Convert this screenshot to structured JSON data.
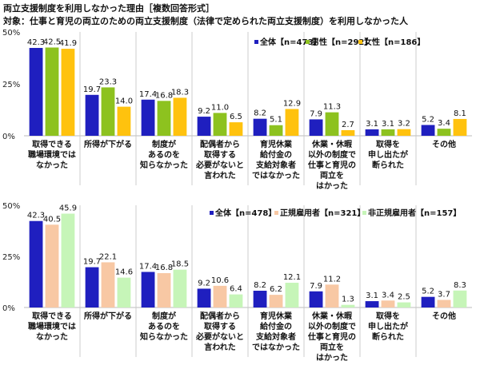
{
  "title": "両立支援制度を利用しなかった理由［複数回答形式］",
  "subtitle": "対象：仕事と育児の両立のための両立支援制度（法律で定められた両立支援制度）を利用しなかった人",
  "chart_data": [
    {
      "type": "bar",
      "ylim": [
        0,
        50
      ],
      "yticks": [
        "0%",
        "25%",
        "50%"
      ],
      "grid": false,
      "legend": "top-right",
      "categories": [
        [
          "取得できる",
          "職場環境では",
          "なかった"
        ],
        [
          "所得が下がる"
        ],
        [
          "制度が",
          "あるのを",
          "知らなかった"
        ],
        [
          "配偶者から",
          "取得する",
          "必要がないと",
          "言われた"
        ],
        [
          "育児休業",
          "給付金の",
          "支給対象者",
          "ではなかった"
        ],
        [
          "休業・休暇",
          "以外の制度で",
          "仕事と育児の",
          "両立を",
          "はかった"
        ],
        [
          "取得を",
          "申し出たが",
          "断られた"
        ],
        [
          "その他"
        ]
      ],
      "series": [
        {
          "name": "全体【n=478】",
          "color": "#1f1fbf",
          "values": [
            42.3,
            19.7,
            17.4,
            9.2,
            8.2,
            7.9,
            3.1,
            5.2
          ]
        },
        {
          "name": "男性【n=292】",
          "color": "#8dc21f",
          "values": [
            42.5,
            23.3,
            16.8,
            11.0,
            5.1,
            11.3,
            3.1,
            3.4
          ]
        },
        {
          "name": "女性【n=186】",
          "color": "#ffc20e",
          "values": [
            41.9,
            14.0,
            18.3,
            6.5,
            12.9,
            2.7,
            3.2,
            8.1
          ]
        }
      ]
    },
    {
      "type": "bar",
      "ylim": [
        0,
        50
      ],
      "yticks": [
        "0%",
        "25%",
        "50%"
      ],
      "grid": false,
      "legend": "top-right",
      "categories": [
        [
          "取得できる",
          "職場環境では",
          "なかった"
        ],
        [
          "所得が下がる"
        ],
        [
          "制度が",
          "あるのを",
          "知らなかった"
        ],
        [
          "配偶者から",
          "取得する",
          "必要がないと",
          "言われた"
        ],
        [
          "育児休業",
          "給付金の",
          "支給対象者",
          "ではなかった"
        ],
        [
          "休業・休暇",
          "以外の制度で",
          "仕事と育児の",
          "両立を",
          "はかった"
        ],
        [
          "取得を",
          "申し出たが",
          "断られた"
        ],
        [
          "その他"
        ]
      ],
      "series": [
        {
          "name": "全体【n=478】",
          "color": "#1f1fbf",
          "values": [
            42.3,
            19.7,
            17.4,
            9.2,
            8.2,
            7.9,
            3.1,
            5.2
          ]
        },
        {
          "name": "正規雇用者【n=321】",
          "color": "#f8c8a4",
          "values": [
            40.5,
            22.1,
            16.8,
            10.6,
            6.2,
            11.2,
            3.4,
            3.7
          ]
        },
        {
          "name": "非正規雇用者【n=157】",
          "color": "#c6f5b8",
          "values": [
            45.9,
            14.6,
            18.5,
            6.4,
            12.1,
            1.3,
            2.5,
            8.3
          ]
        }
      ]
    }
  ]
}
